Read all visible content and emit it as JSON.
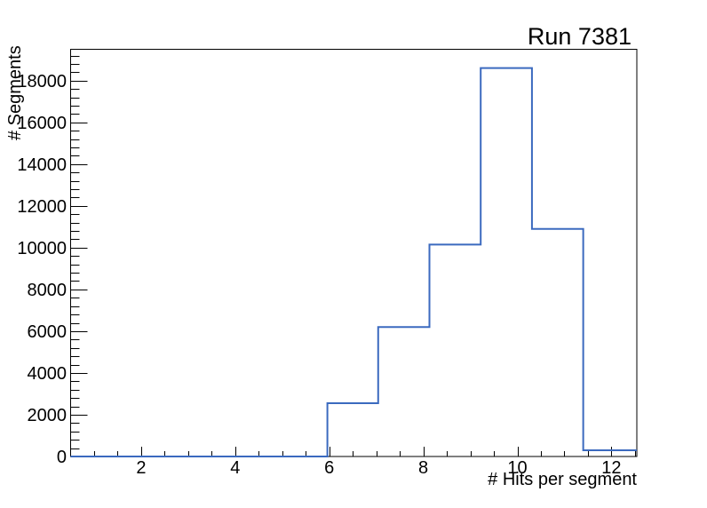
{
  "window": {
    "background": "#ffffff"
  },
  "chart_data": {
    "type": "histogram",
    "title": "Run 7381",
    "xlabel": "# Hits per segment",
    "ylabel": "# Segments",
    "xlim": [
      0.5,
      12.54
    ],
    "ylim": [
      0,
      19500
    ],
    "x_major_ticks": [
      2,
      4,
      6,
      8,
      10,
      12
    ],
    "x_minor_step": 0.5,
    "y_major_ticks": [
      0,
      2000,
      4000,
      6000,
      8000,
      10000,
      12000,
      14000,
      16000,
      18000
    ],
    "y_minor_step": 400,
    "grid": false,
    "legend": false,
    "bin_edges": [
      0.5,
      5.96,
      7.04,
      8.13,
      9.22,
      10.31,
      11.4,
      12.54
    ],
    "counts": [
      0,
      2550,
      6200,
      10150,
      18600,
      10900,
      300
    ],
    "line_color": "#3b6abf",
    "axis_color": "#000000",
    "text_color": "#000000"
  }
}
